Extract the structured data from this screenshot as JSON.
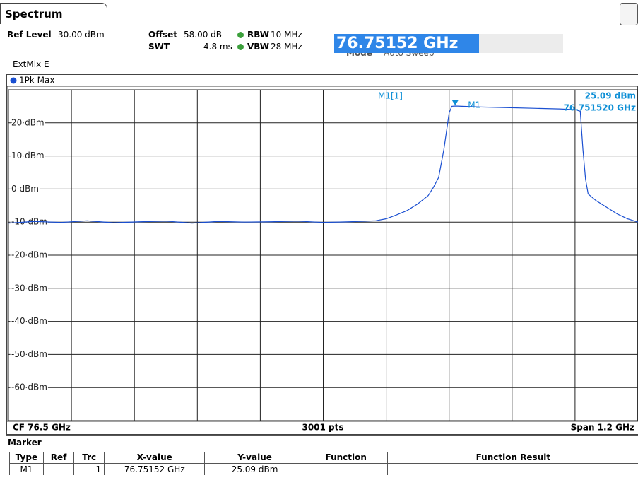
{
  "header": {
    "tab": "Spectrum",
    "ref_level_label": "Ref Level",
    "ref_level": "30.00 dBm",
    "offset_label": "Offset",
    "offset": "58.00 dB",
    "rbw_label": "RBW",
    "rbw": "10 MHz",
    "swt_label": "SWT",
    "swt": "4.8 ms",
    "vbw_label": "VBW",
    "vbw": "28 MHz",
    "mode_label": "Mode",
    "mode": "Auto Sweep",
    "input": "76.75152 GHz",
    "mixer": "ExtMix E"
  },
  "chart_data": {
    "type": "line",
    "x": [
      75.9,
      75.95,
      76.0,
      76.05,
      76.1,
      76.15,
      76.2,
      76.25,
      76.3,
      76.35,
      76.4,
      76.45,
      76.5,
      76.55,
      76.6,
      76.62,
      76.64,
      76.66,
      76.68,
      76.7,
      76.71,
      76.72,
      76.73,
      76.74,
      76.745,
      76.75152,
      76.8,
      76.85,
      76.9,
      76.95,
      76.98,
      76.99,
      76.995,
      77.0,
      77.005,
      77.02,
      77.04,
      77.06,
      77.08,
      77.1
    ],
    "series": [
      {
        "name": "1Pk Max",
        "color": "#1a4fd1",
        "values": [
          -10.3,
          -9.8,
          -10.1,
          -9.6,
          -10.2,
          -9.9,
          -9.7,
          -10.3,
          -9.8,
          -10.0,
          -9.9,
          -9.7,
          -10.1,
          -9.9,
          -9.6,
          -9.0,
          -7.8,
          -6.5,
          -4.5,
          -2.0,
          0.5,
          3.5,
          12.0,
          23.0,
          25.0,
          25.09,
          24.8,
          24.6,
          24.4,
          24.2,
          24.0,
          23.5,
          12.0,
          3.0,
          -1.5,
          -3.5,
          -5.5,
          -7.5,
          -9.0,
          -10.0
        ]
      }
    ],
    "xlim": [
      75.9,
      77.1
    ],
    "xticks": [
      75.9,
      76.02,
      76.14,
      76.26,
      76.38,
      76.5,
      76.62,
      76.74,
      76.86,
      76.98,
      77.1
    ],
    "ylim": [
      -70,
      30
    ],
    "yticks": [
      {
        "value": 20,
        "label": "20 dBm"
      },
      {
        "value": 10,
        "label": "10 dBm"
      },
      {
        "value": 0,
        "label": "0 dBm"
      },
      {
        "value": -10,
        "label": "-10 dBm"
      },
      {
        "value": -20,
        "label": "-20 dBm"
      },
      {
        "value": -30,
        "label": "-30 dBm"
      },
      {
        "value": -40,
        "label": "-40 dBm"
      },
      {
        "value": -50,
        "label": "-50 dBm"
      },
      {
        "value": -60,
        "label": "-60 dBm"
      }
    ],
    "grid": true,
    "marker": {
      "name": "M1",
      "readout": "M1[1]",
      "x": 76.75152,
      "y": 25.09,
      "x_label": "76.751520 GHz",
      "y_label": "25.09 dBm",
      "color": "#0e8fd6"
    },
    "footer": {
      "center": "CF 76.5 GHz",
      "points": "3001 pts",
      "span": "Span 1.2 GHz"
    }
  },
  "marker_table": {
    "title": "Marker",
    "columns": [
      "Type",
      "Ref",
      "Trc",
      "X-value",
      "Y-value",
      "Function",
      "Function Result"
    ],
    "rows": [
      {
        "type": "M1",
        "trc": "1",
        "x_value": "76.75152 GHz",
        "y_value": "25.09 dBm"
      }
    ]
  }
}
